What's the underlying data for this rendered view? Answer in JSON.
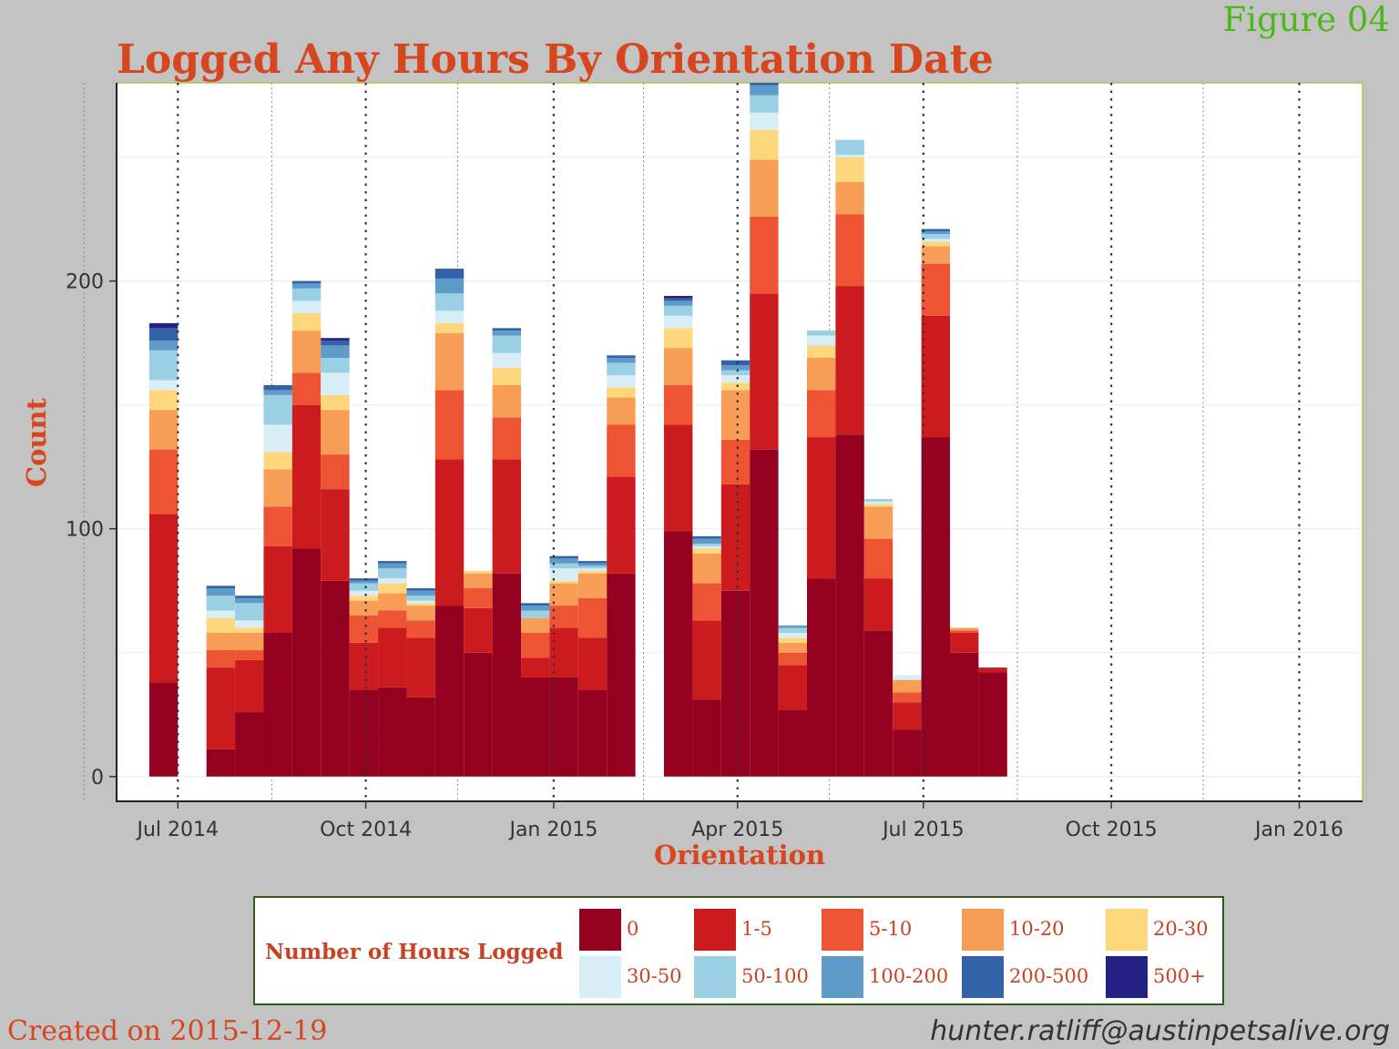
{
  "figure_tag": "Figure 04",
  "footer": {
    "created": "Created on 2015-12-19",
    "email": "hunter.ratliff@austinpetsalive.org"
  },
  "colors": {
    "background": "#c3c3c3",
    "title": "#d6461f",
    "panel_border": "#a8c85a",
    "legend_border": "#2f5e1c",
    "figure_tag": "#4eb81a"
  },
  "chart_data": {
    "type": "bar",
    "stacked": true,
    "title": "Logged Any Hours By Orientation Date",
    "xlabel": "Orientation",
    "ylabel": "Count",
    "ylim": [
      -10,
      280
    ],
    "y_ticks": [
      0,
      100,
      200
    ],
    "x_ticks": [
      "Jul 2014",
      "Oct 2014",
      "Jan 2015",
      "Apr 2015",
      "Jul 2015",
      "Oct 2015",
      "Jan 2016"
    ],
    "x_tick_dates": [
      "2014-07-01",
      "2014-10-01",
      "2015-01-01",
      "2015-04-01",
      "2015-07-01",
      "2015-10-01",
      "2016-01-01"
    ],
    "bin_width_days": 14,
    "x_range": [
      "2014-06-01",
      "2016-02-01"
    ],
    "grid": true,
    "legend": {
      "title": "Number of Hours Logged",
      "position": "bottom",
      "categories": [
        "0",
        "1-5",
        "5-10",
        "10-20",
        "20-30",
        "30-50",
        "50-100",
        "100-200",
        "200-500",
        "500+"
      ],
      "colors": [
        "#94001f",
        "#cb1b1f",
        "#ed5434",
        "#f89d55",
        "#fed77d",
        "#d8eef6",
        "#9acfe4",
        "#5f9bc9",
        "#3362a9",
        "#232181"
      ]
    },
    "bins": [
      {
        "start": "2014-06-17",
        "values": [
          38,
          68,
          26,
          16,
          8,
          4,
          12,
          4,
          5,
          2
        ]
      },
      {
        "start": "2014-07-15",
        "values": [
          11,
          33,
          7,
          7,
          6,
          3,
          6,
          3,
          1,
          0
        ]
      },
      {
        "start": "2014-07-29",
        "values": [
          26,
          21,
          4,
          7,
          2,
          3,
          7,
          2,
          1,
          0
        ]
      },
      {
        "start": "2014-08-12",
        "values": [
          58,
          35,
          16,
          15,
          7,
          11,
          12,
          2,
          2,
          0
        ]
      },
      {
        "start": "2014-08-26",
        "values": [
          92,
          58,
          13,
          17,
          7,
          5,
          5,
          2,
          1,
          0
        ]
      },
      {
        "start": "2014-09-09",
        "values": [
          79,
          37,
          14,
          18,
          6,
          9,
          6,
          5,
          2,
          1
        ]
      },
      {
        "start": "2014-09-23",
        "values": [
          35,
          19,
          11,
          6,
          2,
          2,
          3,
          1,
          1,
          0
        ]
      },
      {
        "start": "2014-10-07",
        "values": [
          36,
          24,
          7,
          7,
          4,
          2,
          4,
          2,
          1,
          0
        ]
      },
      {
        "start": "2014-10-21",
        "values": [
          32,
          24,
          7,
          6,
          1,
          1,
          2,
          2,
          1,
          0
        ]
      },
      {
        "start": "2014-11-04",
        "values": [
          69,
          59,
          28,
          23,
          4,
          5,
          7,
          6,
          4,
          0
        ]
      },
      {
        "start": "2014-11-18",
        "values": [
          50,
          18,
          8,
          6,
          1,
          0,
          0,
          0,
          0,
          0
        ]
      },
      {
        "start": "2014-12-02",
        "values": [
          82,
          46,
          17,
          13,
          7,
          6,
          7,
          2,
          1,
          0
        ]
      },
      {
        "start": "2014-12-16",
        "values": [
          40,
          8,
          10,
          6,
          0,
          0,
          3,
          2,
          1,
          0
        ]
      },
      {
        "start": "2014-12-30",
        "values": [
          40,
          20,
          9,
          9,
          1,
          5,
          2,
          2,
          1,
          0
        ]
      },
      {
        "start": "2015-01-13",
        "values": [
          35,
          21,
          16,
          10,
          1,
          1,
          1,
          1,
          1,
          0
        ]
      },
      {
        "start": "2015-01-27",
        "values": [
          82,
          39,
          21,
          11,
          4,
          5,
          5,
          2,
          1,
          0
        ]
      },
      {
        "start": "2015-02-24",
        "values": [
          99,
          43,
          16,
          15,
          8,
          5,
          4,
          2,
          1,
          1
        ]
      },
      {
        "start": "2015-03-10",
        "values": [
          31,
          32,
          15,
          12,
          2,
          1,
          1,
          2,
          1,
          0
        ]
      },
      {
        "start": "2015-03-24",
        "values": [
          75,
          43,
          18,
          20,
          3,
          3,
          2,
          2,
          2,
          0
        ]
      },
      {
        "start": "2015-04-07",
        "values": [
          132,
          63,
          31,
          23,
          12,
          7,
          7,
          4,
          1,
          0
        ]
      },
      {
        "start": "2015-04-21",
        "values": [
          27,
          18,
          5,
          4,
          2,
          2,
          2,
          1,
          0,
          0
        ]
      },
      {
        "start": "2015-05-05",
        "values": [
          80,
          57,
          19,
          13,
          5,
          4,
          2,
          0,
          0,
          0
        ]
      },
      {
        "start": "2015-05-19",
        "values": [
          138,
          60,
          29,
          13,
          10,
          1,
          6,
          0,
          0,
          0
        ]
      },
      {
        "start": "2015-06-02",
        "values": [
          59,
          21,
          16,
          13,
          1,
          1,
          1,
          0,
          0,
          0
        ]
      },
      {
        "start": "2015-06-16",
        "values": [
          19,
          11,
          4,
          5,
          0,
          2,
          0,
          0,
          0,
          0
        ]
      },
      {
        "start": "2015-06-30",
        "values": [
          137,
          49,
          21,
          7,
          2,
          1,
          2,
          1,
          1,
          0
        ]
      },
      {
        "start": "2015-07-14",
        "values": [
          50,
          8,
          1,
          1,
          0,
          0,
          0,
          0,
          0,
          0
        ]
      },
      {
        "start": "2015-07-28",
        "values": [
          42,
          2,
          0,
          0,
          0,
          0,
          0,
          0,
          0,
          0
        ]
      }
    ]
  }
}
